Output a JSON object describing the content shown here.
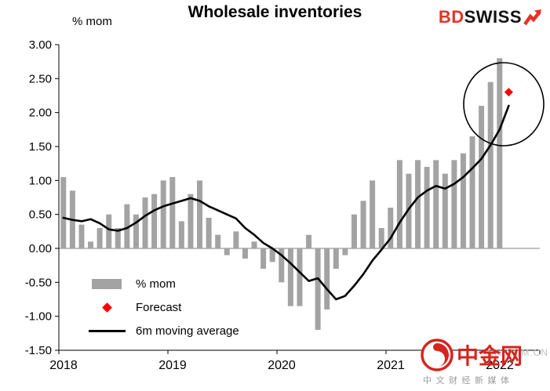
{
  "title": "Wholesale inventories",
  "logo": {
    "part1": "BD",
    "part2": "SWISS"
  },
  "colors": {
    "logo_red": "#e63227",
    "watermark_red": "#d5251d",
    "axis_black": "#000000",
    "zero_line_gray": "#9a9a9a"
  },
  "watermark": {
    "brand": "中金网",
    "domain": "CN.COM.CN",
    "tagline": "中文财经新媒体"
  },
  "chart_data": {
    "type": "bar",
    "title": "Wholesale inventories",
    "ylabel": "% mom",
    "xlabel": "",
    "ylim": [
      -1.5,
      3.0
    ],
    "ytick_step": 0.5,
    "y_tick_labels": [
      "3.00",
      "2.50",
      "2.00",
      "1.50",
      "1.00",
      "0.50",
      "0.00",
      "-0.50",
      "-1.00",
      "-1.50"
    ],
    "x_tick_labels": [
      "2018",
      "2019",
      "2020",
      "2021",
      "2022"
    ],
    "x_start": "2018-01",
    "frequency": "monthly",
    "grid": "off",
    "legend_position": "inside bottom-left",
    "annotation": "black circle drawn around the latest bars and the forecast point",
    "series": [
      {
        "name": "% mom",
        "type": "bar",
        "color": "#a3a3a3",
        "values": [
          1.05,
          0.85,
          0.35,
          0.1,
          0.3,
          0.5,
          0.3,
          0.65,
          0.5,
          0.75,
          0.8,
          1.0,
          1.05,
          0.4,
          0.8,
          1.0,
          0.45,
          0.2,
          -0.1,
          0.25,
          -0.15,
          0.1,
          -0.3,
          -0.2,
          -0.5,
          -0.85,
          -0.85,
          0.2,
          -1.2,
          -0.9,
          -0.3,
          -0.1,
          0.5,
          0.7,
          1.0,
          0.3,
          0.6,
          1.3,
          1.1,
          1.3,
          1.2,
          1.3,
          1.1,
          1.3,
          1.4,
          1.65,
          2.1,
          2.45,
          2.8
        ]
      },
      {
        "name": "Forecast",
        "type": "point",
        "marker": "diamond",
        "color": "#ff0000",
        "month": "2022-02",
        "value": 2.3
      },
      {
        "name": "6m moving average",
        "type": "line",
        "color": "#000000",
        "values": [
          0.45,
          0.42,
          0.4,
          0.43,
          0.37,
          0.28,
          0.26,
          0.3,
          0.38,
          0.48,
          0.56,
          0.62,
          0.66,
          0.7,
          0.74,
          0.7,
          0.62,
          0.56,
          0.5,
          0.44,
          0.3,
          0.2,
          0.08,
          0.0,
          -0.1,
          -0.22,
          -0.35,
          -0.48,
          -0.44,
          -0.6,
          -0.75,
          -0.7,
          -0.55,
          -0.38,
          -0.18,
          -0.02,
          0.15,
          0.38,
          0.58,
          0.75,
          0.85,
          0.92,
          0.88,
          0.95,
          1.05,
          1.18,
          1.32,
          1.52,
          1.75,
          2.1
        ]
      }
    ]
  }
}
